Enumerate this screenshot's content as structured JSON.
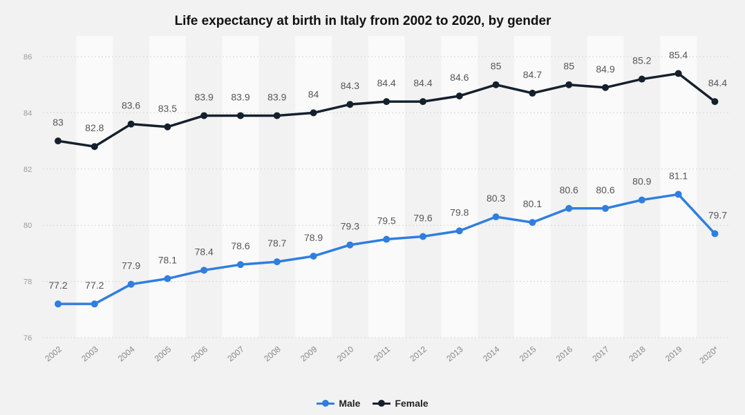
{
  "chart_data": {
    "type": "line",
    "title": "Life expectancy at birth in Italy from 2002 to 2020, by gender",
    "xlabel": "",
    "ylabel": "",
    "categories": [
      "2002",
      "2003",
      "2004",
      "2005",
      "2006",
      "2007",
      "2008",
      "2009",
      "2010",
      "2011",
      "2012",
      "2013",
      "2014",
      "2015",
      "2016",
      "2017",
      "2018",
      "2019",
      "2020*"
    ],
    "y_ticks": [
      "76",
      "78",
      "80",
      "82",
      "84",
      "86"
    ],
    "ylim": [
      76,
      86
    ],
    "grid": true,
    "legend_position": "bottom-center",
    "series": [
      {
        "name": "Male",
        "color": "#2f7ee0",
        "values": [
          77.2,
          77.2,
          77.9,
          78.1,
          78.4,
          78.6,
          78.7,
          78.9,
          79.3,
          79.5,
          79.6,
          79.8,
          80.3,
          80.1,
          80.6,
          80.6,
          80.9,
          81.1,
          79.7
        ],
        "labels": [
          "77.2",
          "77.2",
          "77.9",
          "78.1",
          "78.4",
          "78.6",
          "78.7",
          "78.9",
          "79.3",
          "79.5",
          "79.6",
          "79.8",
          "80.3",
          "80.1",
          "80.6",
          "80.6",
          "80.9",
          "81.1",
          "79.7"
        ]
      },
      {
        "name": "Female",
        "color": "#15202e",
        "values": [
          83,
          82.8,
          83.6,
          83.5,
          83.9,
          83.9,
          83.9,
          84,
          84.3,
          84.4,
          84.4,
          84.6,
          85,
          84.7,
          85,
          84.9,
          85.2,
          85.4,
          84.4
        ],
        "labels": [
          "83",
          "82.8",
          "83.6",
          "83.5",
          "83.9",
          "83.9",
          "83.9",
          "84",
          "84.3",
          "84.4",
          "84.4",
          "84.6",
          "85",
          "84.7",
          "85",
          "84.9",
          "85.2",
          "85.4",
          "84.4"
        ]
      }
    ]
  }
}
